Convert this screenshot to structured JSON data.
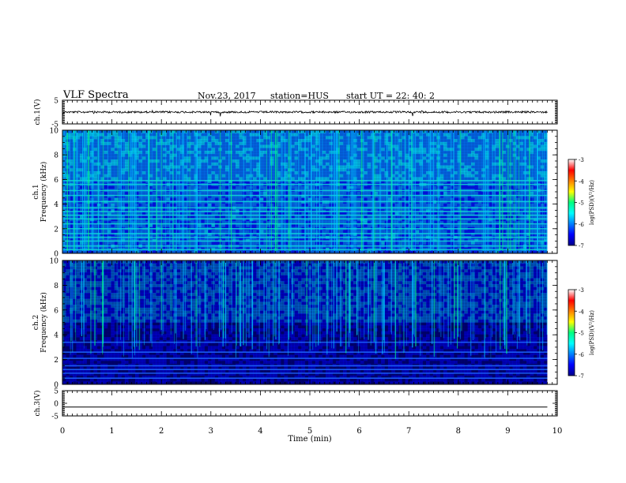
{
  "header": {
    "title": "VLF Spectra",
    "date": "Nov.23, 2017",
    "station": "station=HUS",
    "start": "start  UT =   22: 40: 2"
  },
  "chart_data": [
    {
      "type": "line",
      "id": "ch1-waveform",
      "ylabel": "ch.1(V)",
      "ylim": [
        -5,
        5
      ],
      "yticks": [
        "5",
        "-5"
      ],
      "x_unit": "min",
      "baseline_value": 0
    },
    {
      "type": "heatmap",
      "id": "ch1-spectrogram",
      "channel_label": "ch.1",
      "ylabel": "Frequency (kHz)",
      "ylim": [
        0,
        10
      ],
      "yticks": [
        "0",
        "2",
        "4",
        "6",
        "8",
        "10"
      ],
      "xlim": [
        0,
        10
      ],
      "data_extent_x": [
        0,
        9.8
      ],
      "colorbar": {
        "label": "log(PSD)(V²/Hz)",
        "range": [
          -7,
          -3
        ],
        "ticks": [
          "-3",
          "-4",
          "-5",
          "-6",
          "-7"
        ],
        "colors": [
          "#00008b",
          "#0000ff",
          "#0080ff",
          "#00ffff",
          "#00ff80",
          "#ffff00",
          "#ff8000",
          "#ff0000",
          "#ffffff"
        ]
      },
      "band_lines_khz": [
        0.3,
        0.6,
        1.0,
        1.3,
        1.6,
        2.0,
        2.4,
        2.8,
        3.1,
        3.4,
        3.7,
        4.2,
        4.7,
        5.1,
        5.6,
        5.9
      ]
    },
    {
      "type": "heatmap",
      "id": "ch2-spectrogram",
      "channel_label": "ch.2",
      "ylabel": "Frequency (kHz)",
      "ylim": [
        0,
        10
      ],
      "yticks": [
        "0",
        "2",
        "4",
        "6",
        "8",
        "10"
      ],
      "xlim": [
        0,
        10
      ],
      "data_extent_x": [
        0,
        9.8
      ],
      "colorbar": {
        "label": "log(PSD)(V²/Hz)",
        "range": [
          -7,
          -3
        ],
        "ticks": [
          "-3",
          "-4",
          "-5",
          "-6",
          "-7"
        ],
        "colors": [
          "#00008b",
          "#0000ff",
          "#0080ff",
          "#00ffff",
          "#00ff80",
          "#ffff00",
          "#ff8000",
          "#ff0000",
          "#ffffff"
        ]
      },
      "band_lines_khz": [
        0.5,
        0.9,
        1.2,
        1.5,
        2.1,
        2.6,
        3.4
      ]
    },
    {
      "type": "line",
      "id": "ch3-waveform",
      "ylabel": "ch.3(V)",
      "ylim": [
        -5,
        5
      ],
      "yticks": [
        "5",
        "0",
        "-5"
      ],
      "x_unit": "min",
      "baseline_value": -1.5
    }
  ],
  "xaxis": {
    "label": "Time (min)",
    "ticks": [
      "0",
      "1",
      "2",
      "3",
      "4",
      "5",
      "6",
      "7",
      "8",
      "9",
      "10"
    ],
    "range": [
      0,
      10
    ]
  }
}
